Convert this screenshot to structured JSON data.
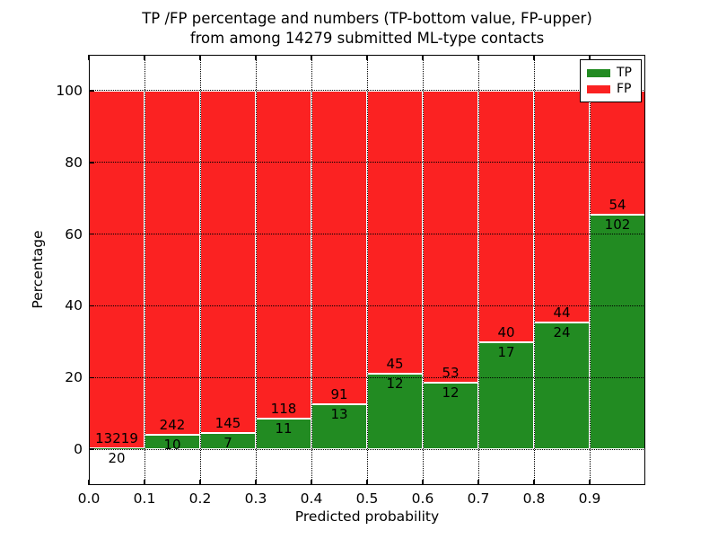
{
  "title": {
    "line1": "TP /FP percentage and numbers (TP-bottom value, FP-upper)",
    "line2": "from among 14279 submitted ML-type contacts"
  },
  "axes": {
    "xlabel": "Predicted probability",
    "ylabel": "Percentage",
    "x_tick_labels": [
      "0.0",
      "0.1",
      "0.2",
      "0.3",
      "0.4",
      "0.5",
      "0.6",
      "0.7",
      "0.8",
      "0.9"
    ],
    "y_tick_labels": [
      "0",
      "20",
      "40",
      "60",
      "80",
      "100"
    ]
  },
  "legend": {
    "position": "upper right",
    "items": [
      {
        "label": "TP",
        "color": "#228b22"
      },
      {
        "label": "FP",
        "color": "#fb2222"
      }
    ]
  },
  "colors": {
    "tp_green": "#228b22",
    "fp_red": "#fb2222",
    "bar_edge": "#ffffff",
    "grid": "#000000"
  },
  "chart_data": {
    "type": "bar",
    "stacked": true,
    "normalized": "each bar totals 100%",
    "title": "TP /FP percentage and numbers (TP-bottom value, FP-upper) from among 14279 submitted ML-type contacts",
    "xlabel": "Predicted probability",
    "ylabel": "Percentage",
    "total_contacts": 14279,
    "bin_edges": [
      0.0,
      0.1,
      0.2,
      0.3,
      0.4,
      0.5,
      0.6,
      0.7,
      0.8,
      0.9,
      1.0
    ],
    "x_tick_values": [
      0.0,
      0.1,
      0.2,
      0.3,
      0.4,
      0.5,
      0.6,
      0.7,
      0.8,
      0.9
    ],
    "y_tick_values": [
      0,
      20,
      40,
      60,
      80,
      100
    ],
    "xlim": [
      0.0,
      1.0
    ],
    "ylim": [
      -10,
      110
    ],
    "grid": "dotted, both axes, drawn over bars",
    "legend_position": "upper right",
    "series": [
      {
        "name": "TP",
        "color": "#228b22",
        "counts": [
          20,
          10,
          7,
          11,
          13,
          12,
          12,
          17,
          24,
          102
        ]
      },
      {
        "name": "FP",
        "color": "#fb2222",
        "counts": [
          13219,
          242,
          145,
          118,
          91,
          45,
          53,
          40,
          44,
          54
        ]
      }
    ],
    "tp_percent": [
      0.15,
      3.97,
      4.61,
      8.53,
      12.5,
      21.05,
      18.46,
      29.82,
      35.29,
      65.38
    ],
    "fp_percent": [
      99.85,
      96.03,
      95.39,
      91.47,
      87.5,
      78.95,
      81.54,
      70.18,
      64.71,
      34.62
    ]
  }
}
